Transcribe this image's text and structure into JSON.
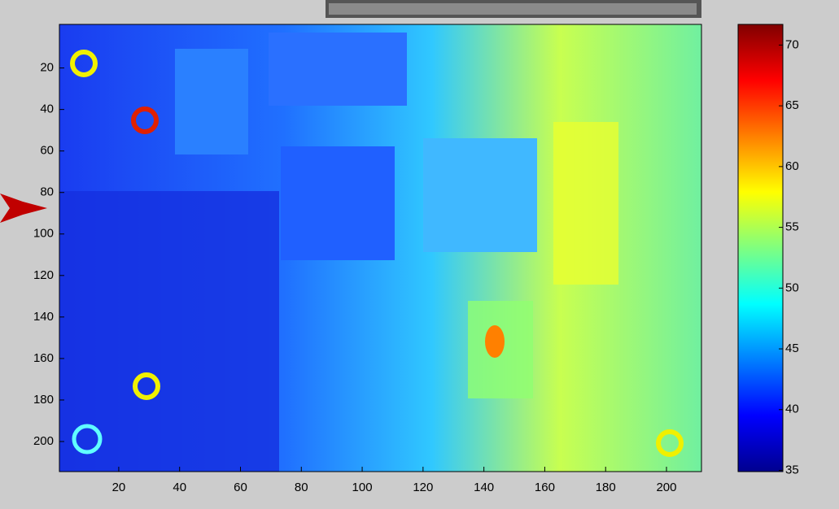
{
  "chart_data": {
    "type": "image",
    "xlim": [
      0.5,
      211.5
    ],
    "ylim": [
      -1,
      214.5
    ],
    "y_reversed": true,
    "xticks": [
      20,
      40,
      60,
      80,
      100,
      120,
      140,
      160,
      180,
      200
    ],
    "yticks": [
      20,
      40,
      60,
      80,
      100,
      120,
      140,
      160,
      180,
      200
    ],
    "colorbar": {
      "clim": [
        34.9,
        71.7
      ],
      "ticks": [
        35,
        40,
        45,
        50,
        55,
        60,
        65,
        70
      ],
      "colormap": "jet"
    }
  }
}
